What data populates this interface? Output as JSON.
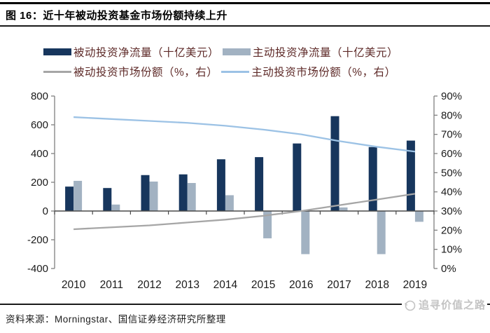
{
  "figure": {
    "title": "图 16：近十年被动投资基金市场份额持续上升",
    "source": "资料来源：Morningstar、国信证券经济研究所整理",
    "watermark": "追寻价值之路"
  },
  "colors": {
    "passive_bar": "#17365D",
    "active_bar": "#A2B2C2",
    "passive_line": "#A6A6A6",
    "active_line": "#9CC2E5",
    "axis_line": "#808080",
    "zero_line": "#4a4a4a",
    "axis_text": "#1a1a1a",
    "legend_text": "#5e2a28"
  },
  "chart_data": {
    "type": "bar+line combo",
    "categories": [
      "2010",
      "2011",
      "2012",
      "2013",
      "2014",
      "2015",
      "2016",
      "2017",
      "2018",
      "2019"
    ],
    "series": [
      {
        "name": "被动投资净流量（十亿美元）",
        "type": "bar",
        "axis": "left",
        "color": "#17365D",
        "values": [
          170,
          160,
          250,
          255,
          360,
          375,
          470,
          660,
          445,
          490
        ]
      },
      {
        "name": "主动投资净流量（十亿美元）",
        "type": "bar",
        "axis": "left",
        "color": "#A2B2C2",
        "values": [
          210,
          45,
          205,
          195,
          110,
          -190,
          -300,
          25,
          -300,
          -75
        ]
      },
      {
        "name": "被动投资市场份额（%，右）",
        "type": "line",
        "axis": "right",
        "color": "#A6A6A6",
        "values": [
          20.5,
          21.5,
          22.5,
          24,
          25.5,
          27.5,
          30,
          33,
          36,
          39
        ]
      },
      {
        "name": "主动投资市场份额（%，右）",
        "type": "line",
        "axis": "right",
        "color": "#9CC2E5",
        "values": [
          79,
          78,
          77,
          76,
          74.5,
          72.5,
          70,
          66.5,
          63.5,
          61
        ]
      }
    ],
    "left_axis": {
      "min": -400,
      "max": 800,
      "ticks": [
        800,
        600,
        400,
        200,
        0,
        -200,
        -400
      ]
    },
    "right_axis": {
      "min": 0,
      "max": 90,
      "ticks": [
        90,
        80,
        70,
        60,
        50,
        40,
        30,
        20,
        10,
        0
      ],
      "suffix": "%"
    },
    "grid": false,
    "legend_position": "top"
  }
}
